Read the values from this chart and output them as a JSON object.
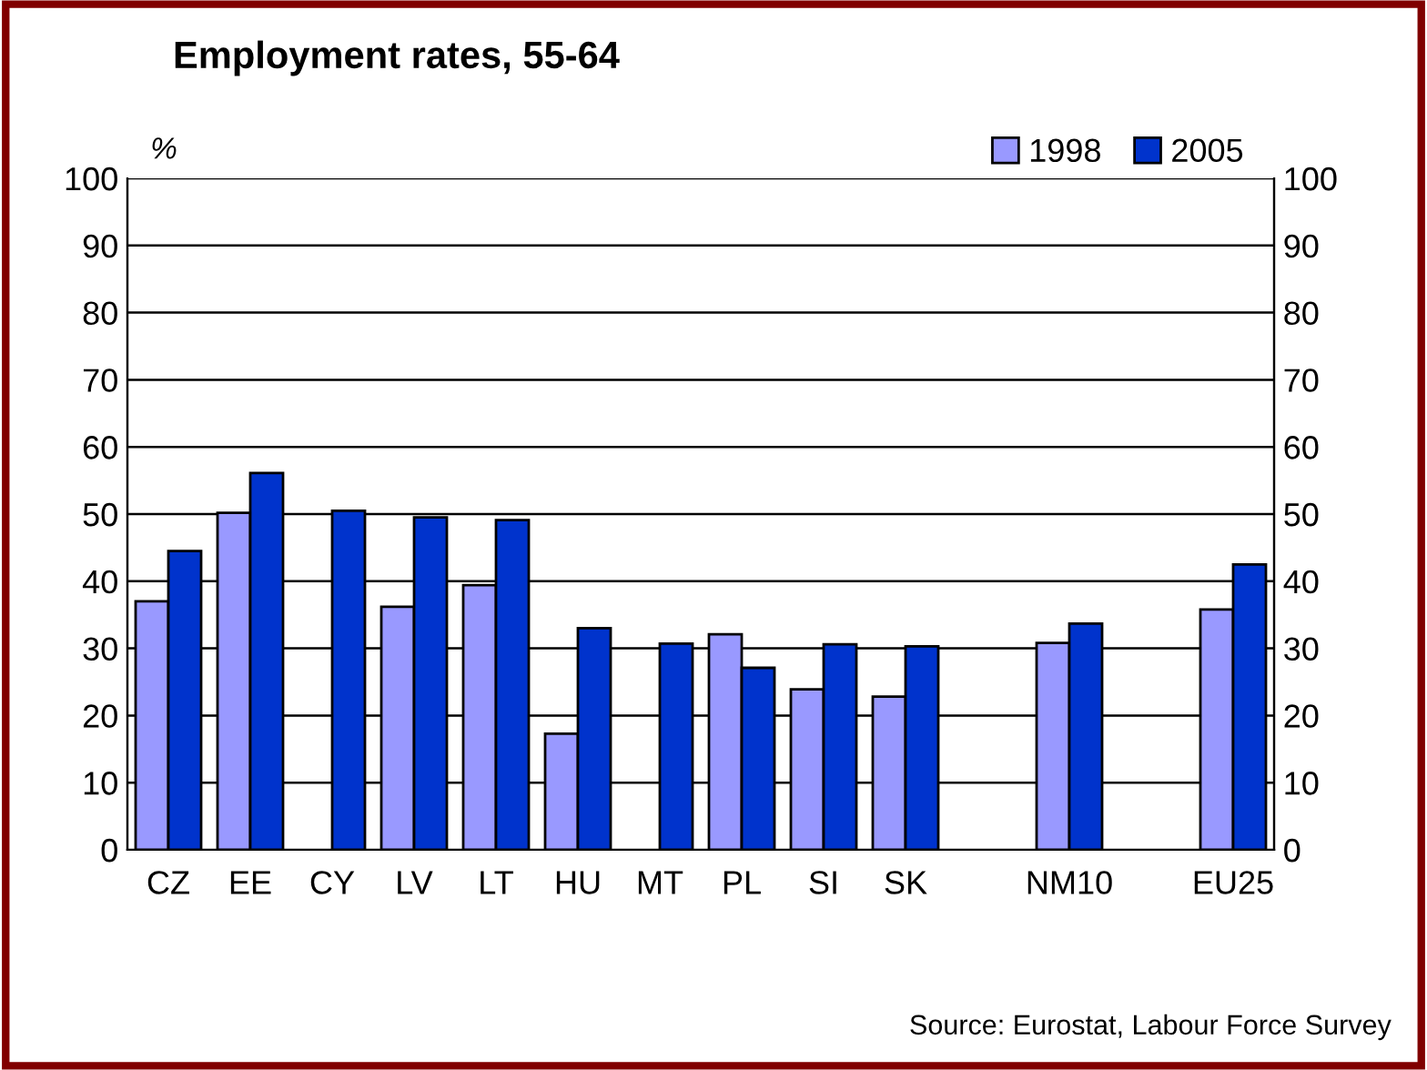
{
  "chart_data": {
    "type": "bar",
    "title": "Employment rates, 55-64",
    "ylabel": "%",
    "categories": [
      "CZ",
      "EE",
      "CY",
      "LV",
      "LT",
      "HU",
      "MT",
      "PL",
      "SI",
      "SK",
      null,
      "NM10",
      null,
      "EU25"
    ],
    "series": [
      {
        "name": "1998",
        "color": "#9999ff",
        "values": [
          37.0,
          50.2,
          null,
          36.2,
          39.4,
          17.3,
          null,
          32.1,
          23.9,
          22.8,
          null,
          30.8,
          null,
          35.8
        ]
      },
      {
        "name": "2005",
        "color": "#0033cc",
        "values": [
          44.5,
          56.1,
          50.5,
          49.5,
          49.1,
          33.0,
          30.7,
          27.1,
          30.6,
          30.3,
          null,
          33.7,
          null,
          42.5
        ]
      }
    ],
    "ylim": [
      0,
      100
    ],
    "yticks": [
      0,
      10,
      20,
      30,
      40,
      50,
      60,
      70,
      80,
      90,
      100
    ],
    "y2lim": [
      0,
      100
    ],
    "y2ticks": [
      0,
      10,
      20,
      30,
      40,
      50,
      60,
      70,
      80,
      90,
      100
    ],
    "grid": "y",
    "legend": "top right",
    "annotations": [
      "Source: Eurostat, Labour Force Survey"
    ]
  }
}
